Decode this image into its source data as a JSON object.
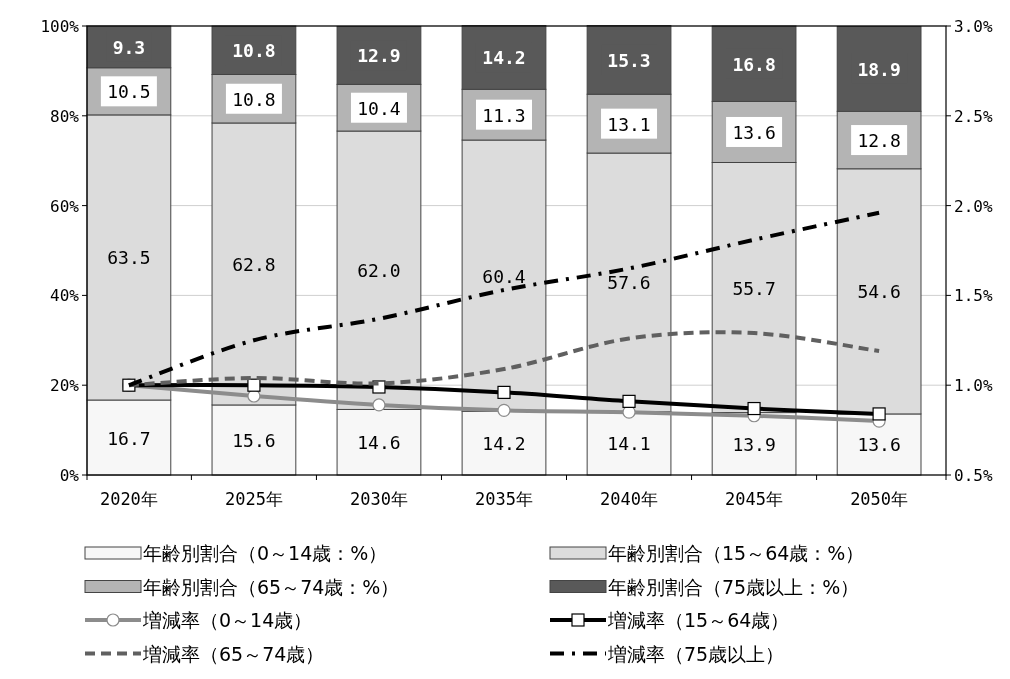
{
  "chart_data": {
    "type": "bar",
    "stacked": true,
    "grid": "y",
    "legend": "bottom",
    "categories": [
      "2020年",
      "2025年",
      "2030年",
      "2035年",
      "2040年",
      "2045年",
      "2050年"
    ],
    "ylim": [
      0,
      100
    ],
    "yticks": [
      {
        "value": 0,
        "label": "0%"
      },
      {
        "value": 20,
        "label": "20%"
      },
      {
        "value": 40,
        "label": "40%"
      },
      {
        "value": 60,
        "label": "60%"
      },
      {
        "value": 80,
        "label": "80%"
      },
      {
        "value": 100,
        "label": "100%"
      }
    ],
    "y2lim": [
      0.5,
      3.0
    ],
    "y2ticks": [
      {
        "value": 0.5,
        "label": "0.5%"
      },
      {
        "value": 1.0,
        "label": "1.0%"
      },
      {
        "value": 1.5,
        "label": "1.5%"
      },
      {
        "value": 2.0,
        "label": "2.0%"
      },
      {
        "value": 2.5,
        "label": "2.5%"
      },
      {
        "value": 3.0,
        "label": "3.0%"
      }
    ],
    "series": [
      {
        "name": "年齢別割合（0～14歳：%）",
        "color": "#f7f7f7",
        "values": [
          16.7,
          15.6,
          14.6,
          14.2,
          14.1,
          13.9,
          13.6
        ],
        "value_labels": [
          "16.7",
          "15.6",
          "14.6",
          "14.2",
          "14.1",
          "13.9",
          "13.6"
        ]
      },
      {
        "name": "年齢別割合（15～64歳：%）",
        "color": "#dcdcdc",
        "values": [
          63.5,
          62.8,
          62.0,
          60.4,
          57.6,
          55.7,
          54.6
        ],
        "value_labels": [
          "63.5",
          "62.8",
          "62.0",
          "60.4",
          "57.6",
          "55.7",
          "54.6"
        ]
      },
      {
        "name": "年齢別割合（65～74歳：%）",
        "color": "#b4b4b4",
        "values": [
          10.5,
          10.8,
          10.4,
          11.3,
          13.1,
          13.6,
          12.8
        ],
        "value_labels": [
          "10.5",
          "10.8",
          "10.4",
          "11.3",
          "13.1",
          "13.6",
          "12.8"
        ]
      },
      {
        "name": "年齢別割合（75歳以上：%）",
        "color": "#595959",
        "values": [
          9.3,
          10.8,
          12.9,
          14.2,
          15.3,
          16.8,
          18.9
        ],
        "value_labels": [
          "9.3",
          "10.8",
          "12.9",
          "14.2",
          "15.3",
          "16.8",
          "18.9"
        ]
      },
      {
        "name": "増減率（0～14歳）",
        "type": "line",
        "axis": "y2",
        "color": "#8c8c8c",
        "marker": "circle",
        "line_style": "solid",
        "values": [
          1.0,
          0.94,
          0.89,
          0.86,
          0.85,
          0.83,
          0.8
        ]
      },
      {
        "name": "増減率（15～64歳）",
        "type": "line",
        "axis": "y2",
        "color": "#000000",
        "marker": "square",
        "line_style": "solid",
        "values": [
          1.0,
          1.0,
          0.99,
          0.96,
          0.91,
          0.87,
          0.84
        ]
      },
      {
        "name": "増減率（65～74歳）",
        "type": "line",
        "axis": "y2",
        "color": "#606060",
        "line_style": "dashed",
        "values": [
          1.0,
          1.04,
          1.01,
          1.09,
          1.26,
          1.29,
          1.19
        ]
      },
      {
        "name": "増減率（75歳以上）",
        "type": "line",
        "axis": "y2",
        "color": "#000000",
        "line_style": "dashdot",
        "values": [
          1.0,
          1.25,
          1.37,
          1.53,
          1.65,
          1.81,
          1.96
        ]
      }
    ]
  }
}
